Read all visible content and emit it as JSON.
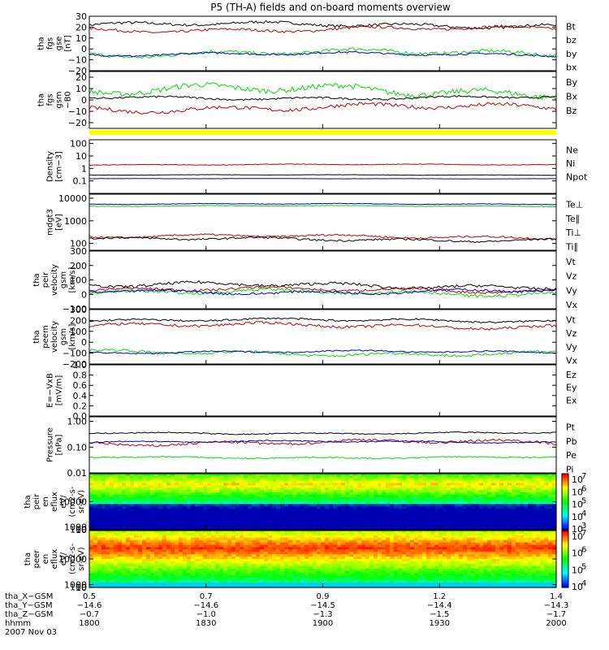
{
  "title": "P5 (TH-A) fields and on-board moments overview",
  "colors": {
    "black": "#000000",
    "red": "#c00000",
    "green": "#00dd00",
    "blue": "#0000cc",
    "yellow": "#ffff00"
  },
  "chart_data": [
    {
      "id": "fgs_gse",
      "type": "line",
      "ylabel": [
        "tha",
        "fgs",
        "gse",
        "[nT]"
      ],
      "ylim": [
        -20,
        30
      ],
      "ticks": [
        "30",
        "20",
        "10",
        "0",
        "−10",
        "−20"
      ],
      "tickvals": [
        30,
        20,
        10,
        0,
        -10,
        -20
      ],
      "series": [
        {
          "name": "Bt",
          "color": "black",
          "base": 22,
          "amp": 3
        },
        {
          "name": "bz",
          "color": "red",
          "base": 18,
          "amp": 3
        },
        {
          "name": "by",
          "color": "green",
          "base": -4,
          "amp": 4
        },
        {
          "name": "bx",
          "color": "blue",
          "base": -5,
          "amp": 2
        }
      ]
    },
    {
      "id": "fgs_gsm",
      "type": "line",
      "ylabel": [
        "tha",
        "fgs",
        "gsm",
        "−B0"
      ],
      "ylim": [
        -25,
        25
      ],
      "ticks": [
        "20",
        "10",
        "0",
        "−10",
        "−20"
      ],
      "tickvals": [
        20,
        10,
        0,
        -10,
        -20
      ],
      "series": [
        {
          "name": "By",
          "color": "green",
          "base": 8,
          "amp": 6
        },
        {
          "name": "Bx",
          "color": "black",
          "base": 2,
          "amp": 2
        },
        {
          "name": "Bz",
          "color": "red",
          "base": -7,
          "amp": 4
        }
      ]
    },
    {
      "id": "density",
      "type": "line",
      "log": true,
      "ylabel": [
        "Density",
        "[cm−3]"
      ],
      "ylim": [
        0.01,
        200
      ],
      "ticks": [
        "100",
        "10",
        "1",
        "0.1"
      ],
      "tickvals": [
        100,
        10,
        1,
        0.1
      ],
      "series": [
        {
          "name": "Ne",
          "color": "red",
          "base": 2,
          "amp": 0.1
        },
        {
          "name": "Ni",
          "color": "black",
          "base": 0.3,
          "amp": 0.05
        },
        {
          "name": "Npot",
          "color": "blue",
          "base": 0.15,
          "amp": 0.03
        }
      ]
    },
    {
      "id": "temp",
      "type": "line",
      "log": true,
      "ylabel": [
        "mdgt3",
        "[eV]"
      ],
      "ylim": [
        50,
        15000
      ],
      "ticks": [
        "10000",
        "1000",
        "100"
      ],
      "tickvals": [
        10000,
        1000,
        100
      ],
      "series": [
        {
          "name": "Te⊥",
          "color": "red",
          "base": 200,
          "amp": 0.2
        },
        {
          "name": "Te∥",
          "color": "black",
          "base": 150,
          "amp": 0.2
        },
        {
          "name": "Ti⊥",
          "color": "blue",
          "base": 5500,
          "amp": 0.05
        },
        {
          "name": "Ti∥",
          "color": "green",
          "base": 4500,
          "amp": 0.05
        }
      ]
    },
    {
      "id": "peir_vel",
      "type": "line",
      "ylabel": [
        "tha",
        "peir",
        "velocity",
        "gsm",
        "[km/s]"
      ],
      "ylim": [
        -100,
        300
      ],
      "ticks": [
        "300",
        "200",
        "100",
        "0",
        "−100"
      ],
      "tickvals": [
        300,
        200,
        100,
        0,
        -100
      ],
      "series": [
        {
          "name": "Vt",
          "color": "black",
          "base": 60,
          "amp": 25
        },
        {
          "name": "Vz",
          "color": "red",
          "base": 30,
          "amp": 20
        },
        {
          "name": "Vy",
          "color": "green",
          "base": 10,
          "amp": 25
        },
        {
          "name": "Vx",
          "color": "blue",
          "base": 20,
          "amp": 20
        }
      ]
    },
    {
      "id": "peem_vel",
      "type": "line",
      "ylabel": [
        "tha",
        "peem",
        "velocity",
        "gsm",
        "[km/s]"
      ],
      "ylim": [
        -200,
        300
      ],
      "ticks": [
        "300",
        "200",
        "100",
        "0",
        "−100",
        "−200"
      ],
      "tickvals": [
        300,
        200,
        100,
        0,
        -100,
        -200
      ],
      "series": [
        {
          "name": "Vt",
          "color": "black",
          "base": 200,
          "amp": 20
        },
        {
          "name": "Vz",
          "color": "red",
          "base": 150,
          "amp": 30
        },
        {
          "name": "Vy",
          "color": "green",
          "base": -100,
          "amp": 30
        },
        {
          "name": "Vx",
          "color": "blue",
          "base": -90,
          "amp": 15
        }
      ]
    },
    {
      "id": "efield",
      "type": "line",
      "ylabel": [
        "E=−VxB",
        "[mV/m]"
      ],
      "ylim": [
        0,
        1
      ],
      "ticks": [
        "1.0",
        "0.8",
        "0.6",
        "0.4",
        "0.2",
        "0.0"
      ],
      "tickvals": [
        1,
        0.8,
        0.6,
        0.4,
        0.2,
        0
      ],
      "series": [
        {
          "name": "Ez",
          "color": "red"
        },
        {
          "name": "Ey",
          "color": "green"
        },
        {
          "name": "Ex",
          "color": "blue"
        }
      ]
    },
    {
      "id": "pressure",
      "type": "line",
      "log": true,
      "ylabel": [
        "Pressure",
        "[nPa]"
      ],
      "ylim": [
        0.01,
        1.5
      ],
      "ticks": [
        "1.00",
        "0.10",
        "0.01"
      ],
      "tickvals": [
        1,
        0.1,
        0.01
      ],
      "series": [
        {
          "name": "Pt",
          "color": "black",
          "base": 0.35,
          "amp": 0.1
        },
        {
          "name": "Pb",
          "color": "red",
          "base": 0.15,
          "amp": 0.25
        },
        {
          "name": "Pe",
          "color": "green",
          "base": 0.04,
          "amp": 0.1
        },
        {
          "name": "Pi",
          "color": "blue",
          "base": 0.16,
          "amp": 0.1
        }
      ]
    },
    {
      "id": "peir_spec",
      "type": "heatmap",
      "ylabel": [
        "tha",
        "peir",
        "en",
        "eflux",
        "eV/",
        "(cm2-s-",
        "sr-eV)"
      ],
      "ylim": [
        10,
        20000
      ],
      "ticks": [
        "10000",
        "1000",
        "100",
        "10"
      ],
      "tickvals": [
        10000,
        1000,
        100,
        10
      ],
      "colorbar": {
        "labels": [
          "10",
          "10",
          "10",
          "10",
          "10"
        ],
        "exps": [
          "7",
          "6",
          "5",
          "4",
          "3"
        ]
      }
    },
    {
      "id": "peer_spec",
      "type": "heatmap",
      "ylabel": [
        "tha",
        "peer",
        "en",
        "eflux",
        "eV/",
        "(cm2-s-",
        "sr-eV)"
      ],
      "ylim": [
        8,
        20000
      ],
      "ticks": [
        "10000",
        "1000",
        "100",
        "10"
      ],
      "tickvals": [
        10000,
        1000,
        100,
        10
      ],
      "colorbar": {
        "labels": [
          "10",
          "10",
          "10",
          "10"
        ],
        "exps": [
          "7",
          "6",
          "5",
          "4"
        ]
      }
    }
  ],
  "xaxis": {
    "rows": [
      {
        "label": "tha_X−GSM",
        "values": [
          "0.5",
          "0.7",
          "0.9",
          "1.2",
          "1.4"
        ]
      },
      {
        "label": "tha_Y−GSM",
        "values": [
          "−14.6",
          "−14.6",
          "−14.5",
          "−14.4",
          "−14.3"
        ]
      },
      {
        "label": "tha_Z−GSM",
        "values": [
          "−0.7",
          "−1.0",
          "−1.3",
          "−1.5",
          "−1.7"
        ]
      },
      {
        "label": "hhmm",
        "values": [
          "1800",
          "1830",
          "1900",
          "1930",
          "2000"
        ]
      }
    ],
    "date": "2007 Nov 03"
  },
  "legends": [
    [
      "Bt",
      "bz",
      "by",
      "bx"
    ],
    [
      "By",
      "Bx",
      "Bz"
    ],
    [],
    [
      "Ne",
      "Ni",
      "Npot"
    ],
    [
      "Te⊥",
      "Te∥",
      "Ti⊥",
      "Ti∥"
    ],
    [
      "Vt",
      "Vz",
      "Vy",
      "Vx"
    ],
    [
      "Vt",
      "Vz",
      "Vy",
      "Vx"
    ],
    [
      "Ez",
      "Ey",
      "Ex"
    ],
    [
      "Pt",
      "Pb",
      "Pe",
      "Pi"
    ]
  ]
}
